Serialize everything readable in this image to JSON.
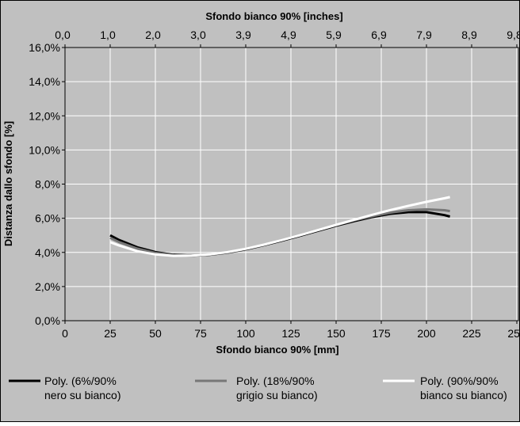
{
  "chart_data": {
    "type": "line",
    "xlabel_top": "Sfondo bianco 90% [inches]",
    "xlabel": "Sfondo bianco 90% [mm]",
    "ylabel": "Distanza dallo sfondo [%]",
    "top_ticks": [
      "0,0",
      "1,0",
      "2,0",
      "3,0",
      "3,9",
      "4,9",
      "5,9",
      "6,9",
      "7,9",
      "8,9",
      "9,8"
    ],
    "x_ticks": [
      "0",
      "25",
      "50",
      "75",
      "100",
      "125",
      "150",
      "175",
      "200",
      "225",
      "250"
    ],
    "y_ticks": [
      "0,0%",
      "2,0%",
      "4,0%",
      "6,0%",
      "8,0%",
      "10,0%",
      "12,0%",
      "14,0%",
      "16,0%"
    ],
    "xlim": [
      0,
      250
    ],
    "ylim": [
      0,
      16
    ],
    "grid": true,
    "legend_position": "bottom",
    "colors": {
      "plot_bg": "#c0c0c0",
      "grid": "#ffffff",
      "frame": "#000000"
    },
    "series": [
      {
        "name": "Poly. (6%/90% nero su bianco)",
        "legend_lines": [
          "Poly. (6%/90%",
          "nero su bianco)"
        ],
        "color": "#000000",
        "x": [
          25,
          30,
          40,
          50,
          60,
          70,
          80,
          90,
          100,
          110,
          120,
          130,
          140,
          150,
          160,
          170,
          180,
          190,
          200,
          210,
          213
        ],
        "y": [
          5.0,
          4.72,
          4.3,
          4.02,
          3.86,
          3.81,
          3.86,
          3.99,
          4.18,
          4.42,
          4.69,
          4.97,
          5.27,
          5.56,
          5.83,
          6.07,
          6.26,
          6.36,
          6.36,
          6.18,
          6.1
        ]
      },
      {
        "name": "Poly. (18%/90% grigio su bianco)",
        "legend_lines": [
          "Poly. (18%/90%",
          "grigio su bianco)"
        ],
        "color": "#777777",
        "x": [
          25,
          30,
          40,
          50,
          60,
          70,
          80,
          90,
          100,
          110,
          120,
          130,
          140,
          150,
          160,
          170,
          180,
          190,
          200,
          210,
          213
        ],
        "y": [
          4.85,
          4.6,
          4.22,
          3.97,
          3.84,
          3.81,
          3.87,
          4.0,
          4.2,
          4.44,
          4.72,
          5.01,
          5.31,
          5.6,
          5.88,
          6.12,
          6.33,
          6.47,
          6.52,
          6.47,
          6.42
        ]
      },
      {
        "name": "Poly. (90%/90% bianco su bianco)",
        "legend_lines": [
          "Poly. (90%/90%",
          "bianco su bianco)"
        ],
        "color": "#ffffff",
        "x": [
          25,
          30,
          40,
          50,
          60,
          70,
          80,
          90,
          100,
          110,
          120,
          130,
          140,
          150,
          160,
          170,
          180,
          190,
          200,
          210,
          213
        ],
        "y": [
          4.6,
          4.4,
          4.07,
          3.88,
          3.8,
          3.81,
          3.88,
          4.02,
          4.21,
          4.45,
          4.72,
          5.01,
          5.31,
          5.61,
          5.91,
          6.2,
          6.48,
          6.73,
          6.96,
          7.17,
          7.24
        ]
      }
    ]
  }
}
